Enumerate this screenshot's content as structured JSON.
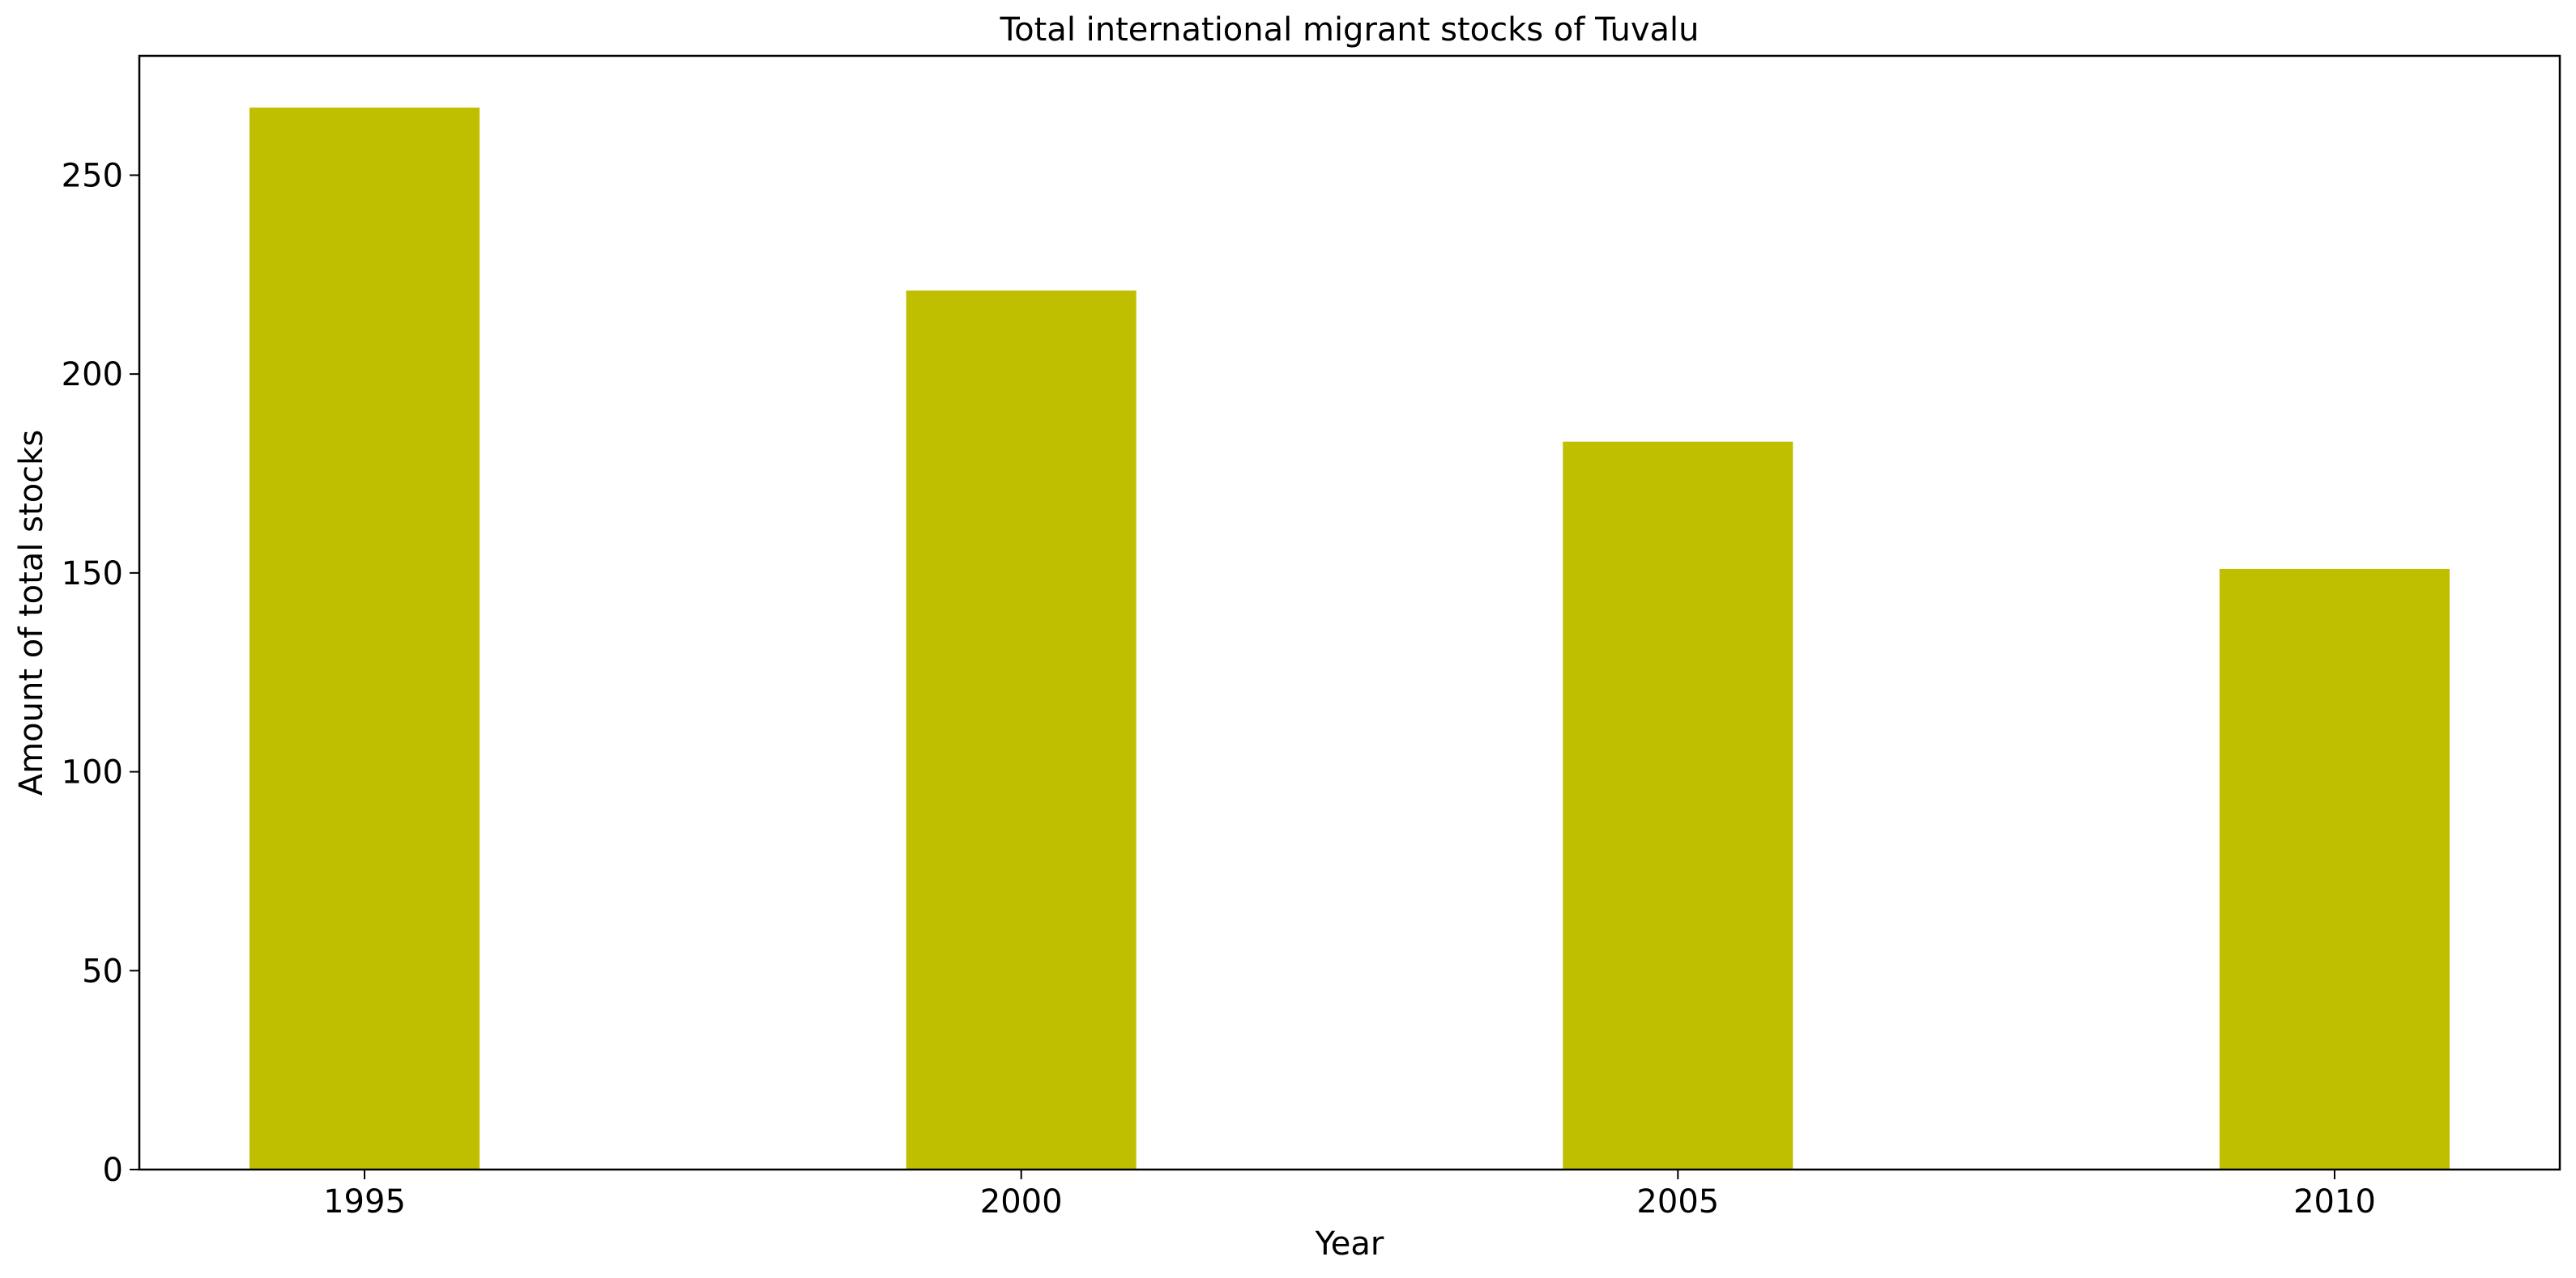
{
  "chart_data": {
    "type": "bar",
    "title": "Total international migrant stocks of Tuvalu",
    "xlabel": "Year",
    "ylabel": "Amount of total stocks",
    "categories": [
      "1995",
      "2000",
      "2005",
      "2010"
    ],
    "values": [
      267,
      221,
      183,
      151
    ],
    "ylim": [
      0,
      280
    ],
    "yticks": [
      0,
      50,
      100,
      150,
      200,
      250
    ],
    "grid": false,
    "legend": "none",
    "bar_color": "#bfbf00"
  }
}
